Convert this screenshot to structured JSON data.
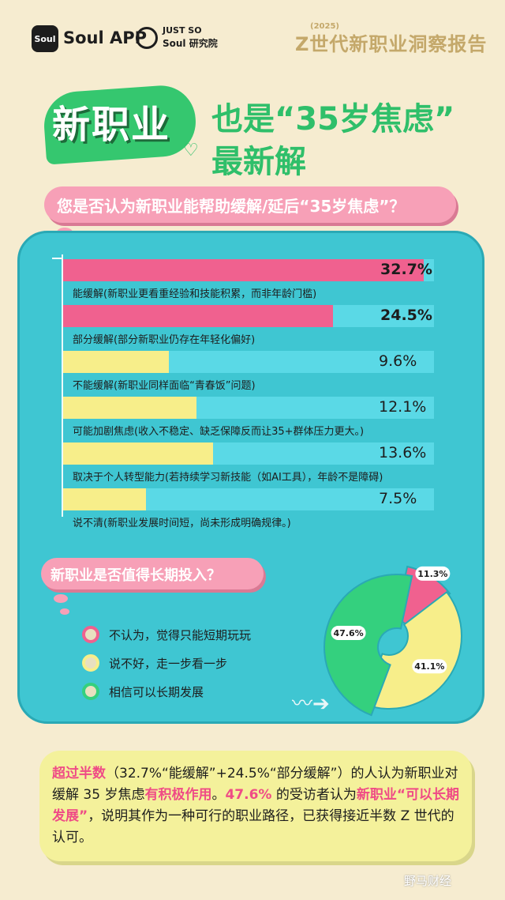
{
  "header": {
    "logo_text": "Soul",
    "brand": "Soul APP",
    "partner_line1": "JUST SO",
    "partner_line2": "Soul 研究院",
    "report_year": "(2025)",
    "report_title": "Z世代新职业洞察报告"
  },
  "headline": {
    "badge": "新职业",
    "line1": "也是“35岁焦虑”",
    "line2": "最新解"
  },
  "question1": "您是否认为新职业能帮助缓解/延后“35岁焦虑”？",
  "question2": "新职业是否值得长期投入？",
  "colors": {
    "pink": "#f0618f",
    "yellow": "#f7ee8a",
    "green": "#34d07e",
    "panel": "#3fc6d2"
  },
  "chart_data": [
    {
      "type": "bar",
      "orientation": "horizontal",
      "categories": [
        "能缓解(新职业更看重经验和技能积累，而非年龄门槛)",
        "部分缓解(部分新职业仍存在年轻化偏好)",
        "不能缓解(新职业同样面临“青春饭”问题)",
        "可能加剧焦虑(收入不稳定、缺乏保障反而让35+群体压力更大。)",
        "取决于个人转型能力(若持续学习新技能（如AI工具），年龄不是障碍)",
        "说不清(新职业发展时间短，尚未形成明确规律。)"
      ],
      "values": [
        32.7,
        24.5,
        9.6,
        12.1,
        13.6,
        7.5
      ],
      "value_labels": [
        "32.7%",
        "24.5%",
        "9.6%",
        "12.1%",
        "13.6%",
        "7.5%"
      ],
      "bar_colors": [
        "pink",
        "pink",
        "yellow",
        "yellow",
        "yellow",
        "yellow"
      ],
      "xlim": [
        0,
        35
      ]
    },
    {
      "type": "pie",
      "style": "donut",
      "categories": [
        "不认为，觉得只能短期玩玩",
        "说不好，走一步看一步",
        "相信可以长期发展"
      ],
      "values": [
        11.3,
        41.1,
        47.6
      ],
      "value_labels": [
        "11.3%",
        "41.1%",
        "47.6%"
      ],
      "slice_colors": [
        "pink",
        "yellow",
        "green"
      ]
    }
  ],
  "summary": {
    "p1_hl": "超过半数",
    "p2": "（32.7%“能缓解”+24.5%“部分缓解”）的人认为新职业对缓解 35 岁焦虑",
    "p3_hl": "有积极作用",
    "p4": "。",
    "p5_hl": "47.6%",
    "p6": " 的受访者认为",
    "p7_hl": "新职业“可以长期发展”",
    "p8": "，说明其作为一种可行的职业路径，已获得接近半数 Z 世代的认可。"
  },
  "watermark": "野马财经"
}
